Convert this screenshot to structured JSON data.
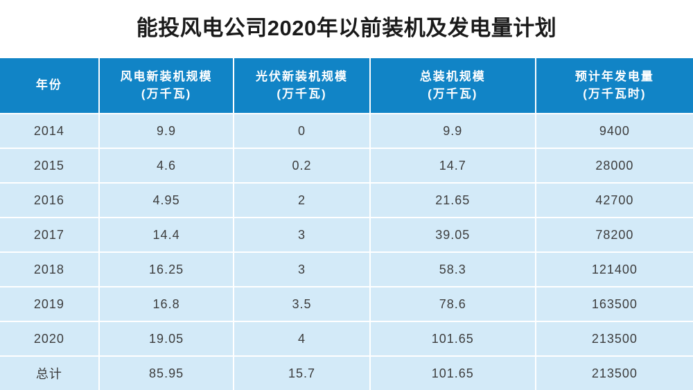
{
  "title": "能投风电公司2020年以前装机及发电量计划",
  "chart_data": {
    "type": "table",
    "title": "能投风电公司2020年以前装机及发电量计划",
    "columns": [
      {
        "label": "年份",
        "unit": ""
      },
      {
        "label": "风电新装机规模",
        "unit": "(万千瓦)"
      },
      {
        "label": "光伏新装机规模",
        "unit": "(万千瓦)"
      },
      {
        "label": "总装机规模",
        "unit": "(万千瓦)"
      },
      {
        "label": "预计年发电量",
        "unit": "(万千瓦时)"
      }
    ],
    "rows": [
      [
        "2014",
        "9.9",
        "0",
        "9.9",
        "9400"
      ],
      [
        "2015",
        "4.6",
        "0.2",
        "14.7",
        "28000"
      ],
      [
        "2016",
        "4.95",
        "2",
        "21.65",
        "42700"
      ],
      [
        "2017",
        "14.4",
        "3",
        "39.05",
        "78200"
      ],
      [
        "2018",
        "16.25",
        "3",
        "58.3",
        "121400"
      ],
      [
        "2019",
        "16.8",
        "3.5",
        "78.6",
        "163500"
      ],
      [
        "2020",
        "19.05",
        "4",
        "101.65",
        "213500"
      ],
      [
        "总计",
        "85.95",
        "15.7",
        "101.65",
        "213500"
      ]
    ],
    "layout": {
      "grid": "on",
      "header_position": "top",
      "last_row_clipped": true
    }
  },
  "colors": {
    "header_bg": "#1184C6",
    "row_bg": "#D3EAF8",
    "grid_line": "#FFFFFF",
    "header_text": "#FFFFFF",
    "body_text": "#3C3C3C",
    "title_text": "#1A1A1A"
  }
}
